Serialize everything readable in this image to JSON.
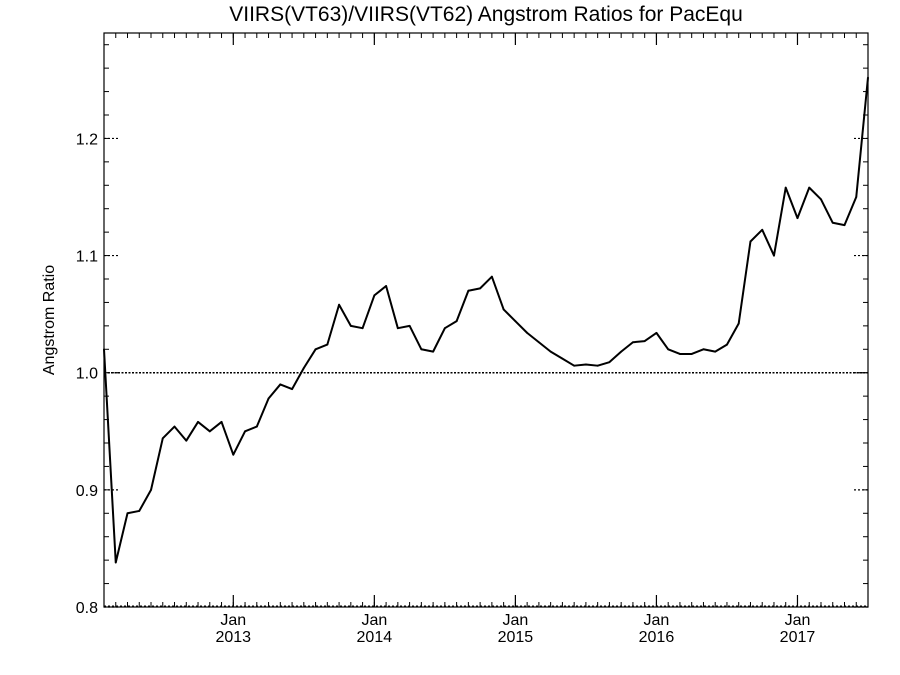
{
  "chart_data": {
    "type": "line",
    "title": "VIIRS(VT63)/VIIRS(VT62)  Angstrom Ratios for PacEqu",
    "ylabel": "Angstrom Ratio",
    "xlabel": "",
    "ylim": [
      0.8,
      1.29
    ],
    "xlim": [
      "2012-02",
      "2017-07"
    ],
    "reference_line": 1.0,
    "y_ticks": [
      {
        "value": 0.8,
        "label": "0.8"
      },
      {
        "value": 0.9,
        "label": "0.9"
      },
      {
        "value": 1.0,
        "label": "1.0"
      },
      {
        "value": 1.1,
        "label": "1.1"
      },
      {
        "value": 1.2,
        "label": "1.2"
      }
    ],
    "x_ticks": [
      {
        "date": "2013-01",
        "label": "Jan",
        "year": "2013"
      },
      {
        "date": "2014-01",
        "label": "Jan",
        "year": "2014"
      },
      {
        "date": "2015-01",
        "label": "Jan",
        "year": "2015"
      },
      {
        "date": "2016-01",
        "label": "Jan",
        "year": "2016"
      },
      {
        "date": "2017-01",
        "label": "Jan",
        "year": "2017"
      }
    ],
    "grid": false,
    "series": [
      {
        "x": [
          "2012-02",
          "2012-03",
          "2012-04",
          "2012-05",
          "2012-06",
          "2012-07",
          "2012-08",
          "2012-09",
          "2012-10",
          "2012-11",
          "2012-12",
          "2013-01",
          "2013-02",
          "2013-03",
          "2013-04",
          "2013-05",
          "2013-06",
          "2013-07",
          "2013-08",
          "2013-09",
          "2013-10",
          "2013-11",
          "2013-12",
          "2014-01",
          "2014-02",
          "2014-03",
          "2014-04",
          "2014-05",
          "2014-06",
          "2014-07",
          "2014-08",
          "2014-09",
          "2014-10",
          "2014-11",
          "2014-12",
          "2015-01",
          "2015-02",
          "2015-03",
          "2015-04",
          "2015-05",
          "2015-06",
          "2015-07",
          "2015-08",
          "2015-09",
          "2015-10",
          "2015-11",
          "2015-12",
          "2016-01",
          "2016-02",
          "2016-03",
          "2016-04",
          "2016-05",
          "2016-06",
          "2016-07",
          "2016-08",
          "2016-09",
          "2016-10",
          "2016-11",
          "2016-12",
          "2017-01",
          "2017-02",
          "2017-03",
          "2017-04",
          "2017-05",
          "2017-06",
          "2017-07"
        ],
        "values": [
          1.02,
          0.838,
          0.88,
          0.882,
          0.9,
          0.944,
          0.954,
          0.942,
          0.958,
          0.95,
          0.958,
          0.93,
          0.95,
          0.954,
          0.978,
          0.99,
          0.986,
          1.004,
          1.02,
          1.024,
          1.058,
          1.04,
          1.038,
          1.066,
          1.074,
          1.038,
          1.04,
          1.02,
          1.018,
          1.038,
          1.044,
          1.07,
          1.072,
          1.082,
          1.054,
          1.044,
          1.034,
          1.026,
          1.018,
          1.012,
          1.006,
          1.007,
          1.006,
          1.009,
          1.018,
          1.026,
          1.027,
          1.034,
          1.02,
          1.016,
          1.016,
          1.02,
          1.018,
          1.024,
          1.042,
          1.112,
          1.122,
          1.1,
          1.158,
          1.132,
          1.158,
          1.148,
          1.128,
          1.126,
          1.15,
          1.252
        ]
      }
    ]
  }
}
